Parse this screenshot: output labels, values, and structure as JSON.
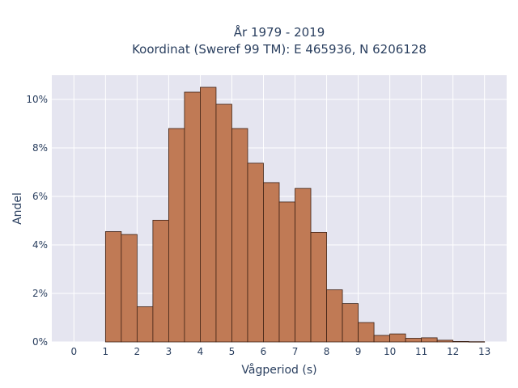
{
  "chart_data": {
    "type": "bar",
    "title_line1": "År 1979 - 2019",
    "title_line2": "Koordinat (Sweref 99 TM): E 465936, N 6206128",
    "xlabel": "Vågperiod (s)",
    "ylabel": "Andel",
    "bin_width": 0.5,
    "bin_starts": [
      1.0,
      1.5,
      2.0,
      2.5,
      3.0,
      3.5,
      4.0,
      4.5,
      5.0,
      5.5,
      6.0,
      6.5,
      7.0,
      7.5,
      8.0,
      8.5,
      9.0,
      9.5,
      10.0,
      10.5,
      11.0,
      11.5,
      12.0,
      12.5
    ],
    "values": [
      4.55,
      4.43,
      1.45,
      5.02,
      8.8,
      10.3,
      10.5,
      9.8,
      8.8,
      7.37,
      6.57,
      5.77,
      6.33,
      4.52,
      2.15,
      1.58,
      0.8,
      0.27,
      0.33,
      0.15,
      0.17,
      0.07,
      0.02,
      0.01
    ],
    "xlim": [
      -0.7,
      13.7
    ],
    "ylim": [
      0,
      11
    ],
    "x_ticks": [
      0,
      1,
      2,
      3,
      4,
      5,
      6,
      7,
      8,
      9,
      10,
      11,
      12,
      13
    ],
    "x_tick_labels": [
      "0",
      "1",
      "2",
      "3",
      "4",
      "5",
      "6",
      "7",
      "8",
      "9",
      "10",
      "11",
      "12",
      "13"
    ],
    "y_ticks": [
      0,
      2,
      4,
      6,
      8,
      10
    ],
    "y_tick_labels": [
      "0%",
      "2%",
      "4%",
      "6%",
      "8%",
      "10%"
    ],
    "grid": true,
    "colors": {
      "bar_fill": "#c07a55",
      "bar_stroke": "#3d2114",
      "plot_bg": "#e5e5f0",
      "grid": "#ffffff",
      "text": "#2a3f5f"
    }
  }
}
